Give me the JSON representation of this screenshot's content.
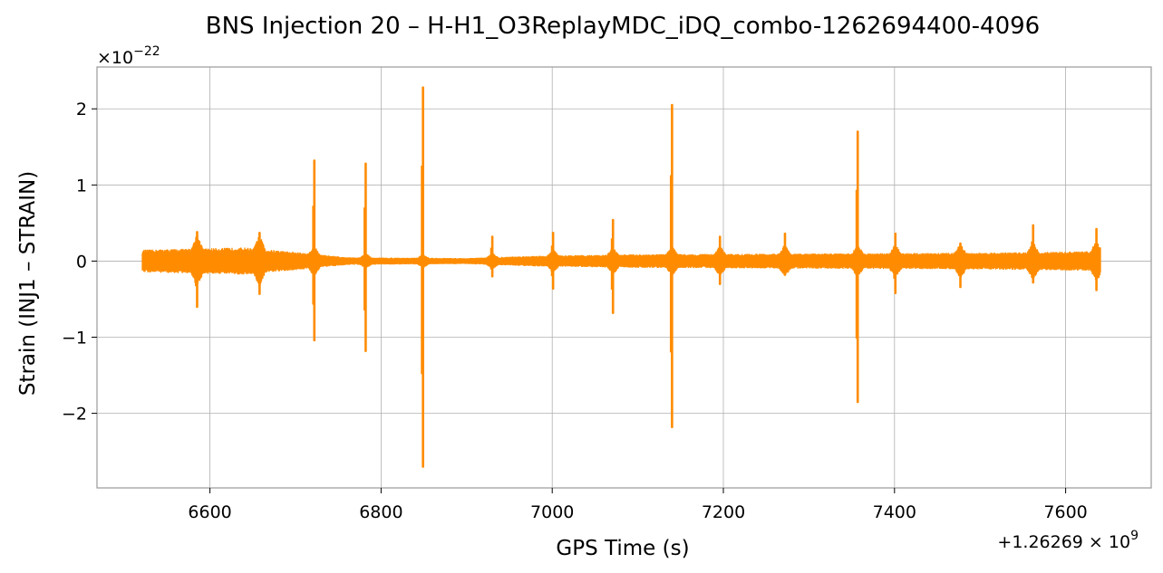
{
  "chart_data": {
    "type": "line",
    "title": "BNS Injection 20 – H-H1_O3ReplayMDC_iDQ_combo-1262694400-4096",
    "xlabel": "GPS Time (s)",
    "ylabel": "Strain (INJ1 – STRAIN)",
    "x_offset_text": {
      "prefix": "+1.26269",
      "times": "×",
      "base": "10",
      "exponent": "9"
    },
    "y_scale_text": {
      "times": "×",
      "base": "10",
      "exponent": "−22"
    },
    "xlim": [
      6468,
      7700
    ],
    "ylim": [
      -2.98,
      2.55
    ],
    "x_ticks": [
      6600,
      6800,
      7000,
      7200,
      7400,
      7600
    ],
    "x_tick_labels": [
      "6600",
      "6800",
      "7000",
      "7200",
      "7400",
      "7600"
    ],
    "y_ticks": [
      -2,
      -1,
      0,
      1,
      2
    ],
    "y_tick_labels": [
      "−2",
      "−1",
      "0",
      "1",
      "2"
    ],
    "grid": true,
    "color": "#ff8c00",
    "series": [
      {
        "x_range": [
          6522,
          7640
        ],
        "baseline_envelope": [
          {
            "x": 6522,
            "amp": 0.15
          },
          {
            "x": 6640,
            "amp": 0.18
          },
          {
            "x": 6700,
            "amp": 0.12
          },
          {
            "x": 6760,
            "amp": 0.05
          },
          {
            "x": 6900,
            "amp": 0.04
          },
          {
            "x": 6980,
            "amp": 0.07
          },
          {
            "x": 7100,
            "amp": 0.09
          },
          {
            "x": 7300,
            "amp": 0.1
          },
          {
            "x": 7500,
            "amp": 0.11
          },
          {
            "x": 7640,
            "amp": 0.13
          }
        ],
        "glitches": [
          {
            "x": 6585,
            "max": 0.38,
            "min": -0.6
          },
          {
            "x": 6658,
            "max": 0.37,
            "min": -0.43
          },
          {
            "x": 6722,
            "max": 1.32,
            "min": -1.04
          },
          {
            "x": 6782,
            "max": 1.28,
            "min": -1.18
          },
          {
            "x": 6849,
            "max": 2.28,
            "min": -2.7
          },
          {
            "x": 6930,
            "max": 0.32,
            "min": -0.2
          },
          {
            "x": 7001,
            "max": 0.37,
            "min": -0.36
          },
          {
            "x": 7071,
            "max": 0.54,
            "min": -0.68
          },
          {
            "x": 7140,
            "max": 2.05,
            "min": -2.18
          },
          {
            "x": 7196,
            "max": 0.32,
            "min": -0.3
          },
          {
            "x": 7272,
            "max": 0.36,
            "min": -0.1
          },
          {
            "x": 7357,
            "max": 1.7,
            "min": -1.85
          },
          {
            "x": 7401,
            "max": 0.36,
            "min": -0.42
          },
          {
            "x": 7477,
            "max": 0.23,
            "min": -0.34
          },
          {
            "x": 7562,
            "max": 0.47,
            "min": -0.28
          },
          {
            "x": 7636,
            "max": 0.42,
            "min": -0.38
          }
        ]
      }
    ]
  }
}
